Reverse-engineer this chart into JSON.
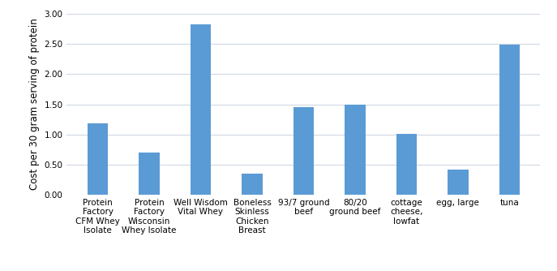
{
  "categories": [
    "Protein\nFactory\nCFM Whey\nIsolate",
    "Protein\nFactory\nWisconsin\nWhey Isolate",
    "Well Wisdom\nVital Whey",
    "Boneless\nSkinless\nChicken\nBreast",
    "93/7 ground\nbeef",
    "80/20\nground beef",
    "cottage\ncheese,\nlowfat",
    "egg, large",
    "tuna"
  ],
  "values": [
    1.18,
    0.7,
    2.82,
    0.36,
    1.46,
    1.5,
    1.01,
    0.42,
    2.49
  ],
  "bar_color": "#5B9BD5",
  "ylabel": "Cost per 30 gram serving of protein",
  "ylim": [
    0.0,
    3.0
  ],
  "yticks": [
    0.0,
    0.5,
    1.0,
    1.5,
    2.0,
    2.5,
    3.0
  ],
  "background_color": "#ffffff",
  "grid_color": "#d0d8e4",
  "tick_label_fontsize": 7.5,
  "ylabel_fontsize": 8.5,
  "bar_width": 0.4
}
